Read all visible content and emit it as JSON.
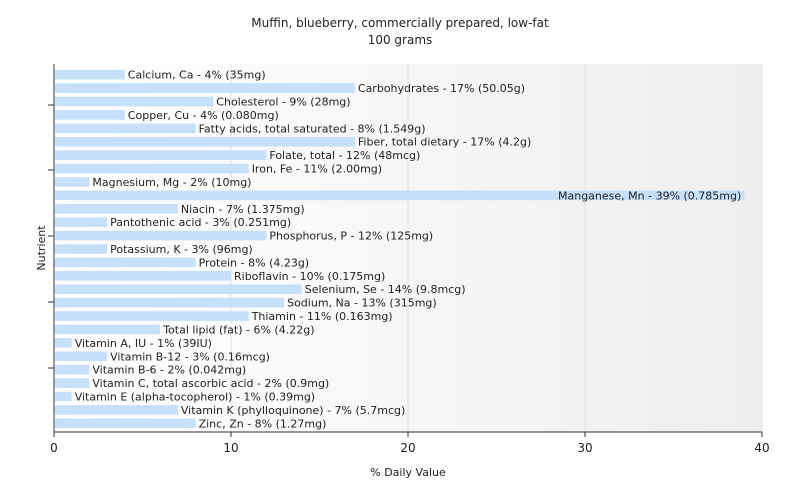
{
  "chart_data": {
    "type": "bar",
    "orientation": "horizontal",
    "title": "Muffin, blueberry, commercially prepared, low-fat",
    "subtitle": "100 grams",
    "xlabel": "% Daily Value",
    "ylabel": "Nutrient",
    "xlim": [
      0,
      40
    ],
    "xticks": [
      "0",
      "10",
      "20",
      "30",
      "40"
    ],
    "bar_color": "#c6e0fa",
    "grid": true,
    "categories": [
      "Calcium, Ca - 4% (35mg)",
      "Carbohydrates - 17% (50.05g)",
      "Cholesterol - 9% (28mg)",
      "Copper, Cu - 4% (0.080mg)",
      "Fatty acids, total saturated - 8% (1.549g)",
      "Fiber, total dietary - 17% (4.2g)",
      "Folate, total - 12% (48mcg)",
      "Iron, Fe - 11% (2.00mg)",
      "Magnesium, Mg - 2% (10mg)",
      "Manganese, Mn - 39% (0.785mg)",
      "Niacin - 7% (1.375mg)",
      "Pantothenic acid - 3% (0.251mg)",
      "Phosphorus, P - 12% (125mg)",
      "Potassium, K - 3% (96mg)",
      "Protein - 8% (4.23g)",
      "Riboflavin - 10% (0.175mg)",
      "Selenium, Se - 14% (9.8mcg)",
      "Sodium, Na - 13% (315mg)",
      "Thiamin - 11% (0.163mg)",
      "Total lipid (fat) - 6% (4.22g)",
      "Vitamin A, IU - 1% (39IU)",
      "Vitamin B-12 - 3% (0.16mcg)",
      "Vitamin B-6 - 2% (0.042mg)",
      "Vitamin C, total ascorbic acid - 2% (0.9mg)",
      "Vitamin E (alpha-tocopherol) - 1% (0.39mg)",
      "Vitamin K (phylloquinone) - 7% (5.7mcg)",
      "Zinc, Zn - 8% (1.27mg)"
    ],
    "values": [
      4,
      17,
      9,
      4,
      8,
      17,
      12,
      11,
      2,
      39,
      7,
      3,
      12,
      3,
      8,
      10,
      14,
      13,
      11,
      6,
      1,
      3,
      2,
      2,
      1,
      7,
      8
    ]
  }
}
